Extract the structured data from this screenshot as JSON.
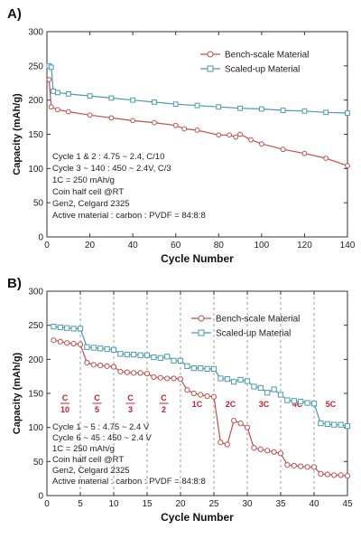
{
  "chart_data": [
    {
      "type": "line",
      "panel_label": "A)",
      "xlabel": "Cycle Number",
      "ylabel": "Capacity (mAh/g)",
      "xlim": [
        0,
        140
      ],
      "ylim": [
        0,
        300
      ],
      "xticks": [
        "0",
        "20",
        "40",
        "60",
        "80",
        "100",
        "120",
        "140"
      ],
      "yticks": [
        "0",
        "50",
        "100",
        "150",
        "200",
        "250",
        "300"
      ],
      "grid": false,
      "legend_position": "top-right",
      "annotations": [
        "Cycle 1 & 2 : 4.75 ~ 2.4, C/10",
        "Cycle 3 ~ 140 : 450 ~ 2.4V, C/3",
        "1C = 250 mAh/g",
        "Coin half cell @RT",
        "Gen2, Celgard 2325",
        "Active material : carbon : PVDF = 84:8:8"
      ],
      "series": [
        {
          "name": "Bench-scale Material",
          "color": "#c0504d",
          "x": [
            1,
            2,
            5,
            10,
            20,
            30,
            40,
            50,
            60,
            64,
            70,
            80,
            85,
            88,
            90,
            95,
            100,
            110,
            120,
            130,
            140
          ],
          "y": [
            230,
            190,
            186,
            183,
            178,
            174,
            170,
            167,
            163,
            158,
            156,
            149,
            149,
            146,
            150,
            142,
            136,
            128,
            122,
            115,
            104
          ]
        },
        {
          "name": "Scaled-up Material",
          "color": "#4a9ab0",
          "x": [
            1,
            2,
            3,
            5,
            10,
            20,
            30,
            40,
            50,
            60,
            70,
            80,
            90,
            100,
            110,
            120,
            130,
            140
          ],
          "y": [
            250,
            248,
            213,
            211,
            209,
            206,
            203,
            200,
            197,
            194,
            192,
            190,
            188,
            187,
            185,
            184,
            182,
            181
          ]
        }
      ]
    },
    {
      "type": "line",
      "panel_label": "B)",
      "xlabel": "Cycle Number",
      "ylabel": "Capacity (mAh/g)",
      "xlim": [
        0,
        45
      ],
      "ylim": [
        0,
        300
      ],
      "xticks": [
        "0",
        "5",
        "10",
        "15",
        "20",
        "25",
        "30",
        "35",
        "40",
        "45"
      ],
      "yticks": [
        "0",
        "50",
        "100",
        "150",
        "200",
        "250",
        "300"
      ],
      "grid": false,
      "legend_position": "top-right",
      "vertical_dividers": [
        5,
        10,
        15,
        20,
        25,
        30,
        35,
        40
      ],
      "rate_labels": [
        {
          "num": "C",
          "den": "10",
          "x": 2.7
        },
        {
          "num": "C",
          "den": "5",
          "x": 7.5
        },
        {
          "num": "C",
          "den": "3",
          "x": 12.5
        },
        {
          "num": "C",
          "den": "2",
          "x": 17.5
        },
        {
          "text": "1C",
          "x": 22.5
        },
        {
          "text": "2C",
          "x": 27.5
        },
        {
          "text": "3C",
          "x": 32.5
        },
        {
          "text": "4C",
          "x": 37.5
        },
        {
          "text": "5C",
          "x": 42.5
        }
      ],
      "annotations": [
        "Cycle 1 ~ 5 : 4.75 ~ 2.4 V",
        "Cycle 6 ~ 45 : 450 ~ 2.4 V",
        "1C = 250 mAh/g",
        "Coin half cell @RT",
        "Gen2, Celgard 2325",
        "Active material : carbon : PVDF = 84:8:8"
      ],
      "series": [
        {
          "name": "Bench-scale Material",
          "color": "#c0504d",
          "x": [
            1,
            2,
            3,
            4,
            5,
            6,
            7,
            8,
            9,
            10,
            11,
            12,
            13,
            14,
            15,
            16,
            17,
            18,
            19,
            20,
            21,
            22,
            23,
            24,
            25,
            26,
            27,
            28,
            29,
            30,
            31,
            32,
            33,
            34,
            35,
            36,
            37,
            38,
            39,
            40,
            41,
            42,
            43,
            44,
            45
          ],
          "y": [
            228,
            226,
            224,
            223,
            222,
            195,
            192,
            191,
            190,
            189,
            182,
            181,
            180,
            180,
            179,
            174,
            173,
            172,
            172,
            171,
            155,
            150,
            148,
            146,
            145,
            78,
            75,
            110,
            106,
            100,
            70,
            68,
            66,
            64,
            62,
            45,
            44,
            43,
            42,
            42,
            32,
            31,
            30,
            30,
            29
          ]
        },
        {
          "name": "Scaled-up Material",
          "color": "#4a9ab0",
          "x": [
            1,
            2,
            3,
            4,
            5,
            6,
            7,
            8,
            9,
            10,
            11,
            12,
            13,
            14,
            15,
            16,
            17,
            18,
            19,
            20,
            21,
            22,
            23,
            24,
            25,
            26,
            27,
            28,
            29,
            30,
            31,
            32,
            33,
            34,
            35,
            36,
            37,
            38,
            39,
            40,
            41,
            42,
            43,
            44,
            45
          ],
          "y": [
            248,
            247,
            246,
            245,
            245,
            218,
            217,
            216,
            215,
            214,
            208,
            207,
            207,
            206,
            206,
            203,
            202,
            204,
            198,
            198,
            190,
            187,
            187,
            186,
            186,
            172,
            171,
            167,
            170,
            168,
            160,
            158,
            151,
            156,
            148,
            140,
            139,
            138,
            136,
            135,
            106,
            105,
            104,
            104,
            102
          ]
        }
      ]
    }
  ]
}
